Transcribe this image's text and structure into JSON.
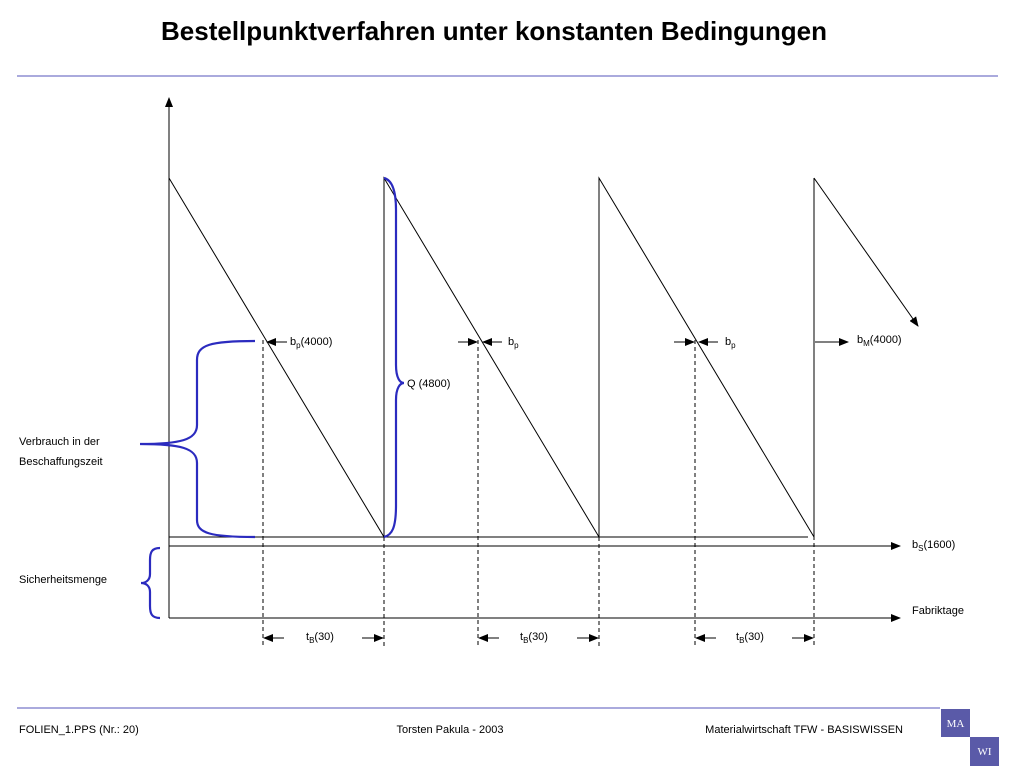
{
  "header": {
    "title": "Bestellpunktverfahren unter konstanten Bedingungen"
  },
  "diagram": {
    "reorder_labels": [
      {
        "base": "b",
        "sub": "p",
        "rest": "(4000)"
      },
      {
        "base": "b",
        "sub": "p"
      },
      {
        "base": "b",
        "sub": "p"
      },
      {
        "base": "b",
        "sub": "M",
        "rest": "(4000)"
      }
    ],
    "order_quantity": "Q (4800)",
    "safety_line": {
      "base": "b",
      "sub": "S",
      "rest": "(1600)"
    },
    "x_axis_label": "Fabriktage",
    "lead_times": [
      {
        "base": "t",
        "sub": "B",
        "rest": "(30)"
      },
      {
        "base": "t",
        "sub": "B",
        "rest": "(30)"
      },
      {
        "base": "t",
        "sub": "B",
        "rest": "(30)"
      }
    ],
    "consumption_label": [
      "Verbrauch in der",
      "Beschaffungszeit"
    ],
    "safety_stock_label": "Sicherheitsmenge"
  },
  "footer": {
    "left": "FOLIEN_1.PPS (Nr.: 20)",
    "center": "Torsten Pakula - 2003",
    "right": "Materialwirtschaft TFW - BASISWISSEN",
    "logo": [
      "MA",
      "WI"
    ]
  }
}
